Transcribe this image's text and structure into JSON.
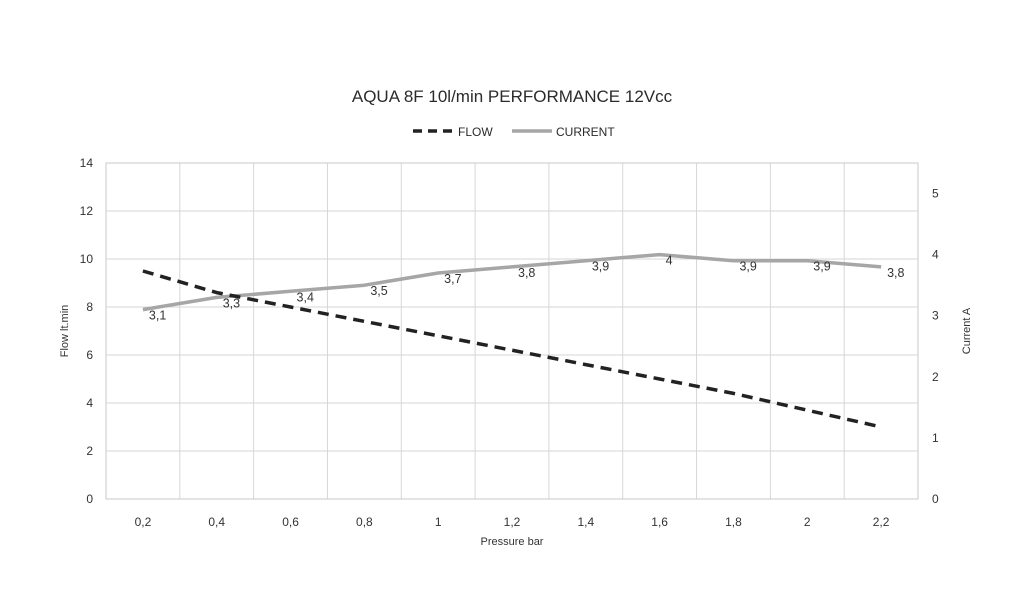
{
  "chart_data": {
    "type": "line",
    "title": "AQUA 8F 10l/min PERFORMANCE 12Vcc",
    "xlabel": "Pressure bar",
    "ylabel": "Flow lt.min",
    "y2label": "Current A",
    "categories": [
      "0,2",
      "0,4",
      "0,6",
      "0,8",
      "1",
      "1,2",
      "1,4",
      "1,6",
      "1,8",
      "2",
      "2,2"
    ],
    "ylim": [
      0,
      14
    ],
    "yticks": [
      "0",
      "2",
      "4",
      "6",
      "8",
      "10",
      "12",
      "14"
    ],
    "y2lim": [
      0,
      5.5
    ],
    "y2ticks": [
      "0",
      "1",
      "2",
      "3",
      "4",
      "5"
    ],
    "legend_position": "top-center",
    "series": [
      {
        "name": "FLOW",
        "axis": "left",
        "style": "dashed",
        "color": "#222222",
        "values": [
          9.5,
          8.6,
          8.0,
          7.4,
          6.8,
          6.2,
          5.6,
          5.0,
          4.4,
          3.7,
          3.0
        ]
      },
      {
        "name": "CURRENT",
        "axis": "right",
        "style": "solid",
        "color": "#a6a6a6",
        "values": [
          3.1,
          3.3,
          3.4,
          3.5,
          3.7,
          3.8,
          3.9,
          4.0,
          3.9,
          3.9,
          3.8
        ],
        "labels": [
          "3,1",
          "3,3",
          "3,4",
          "3,5",
          "3,7",
          "3,8",
          "3,9",
          "4",
          "3,9",
          "3,9",
          "3,8"
        ]
      }
    ]
  }
}
